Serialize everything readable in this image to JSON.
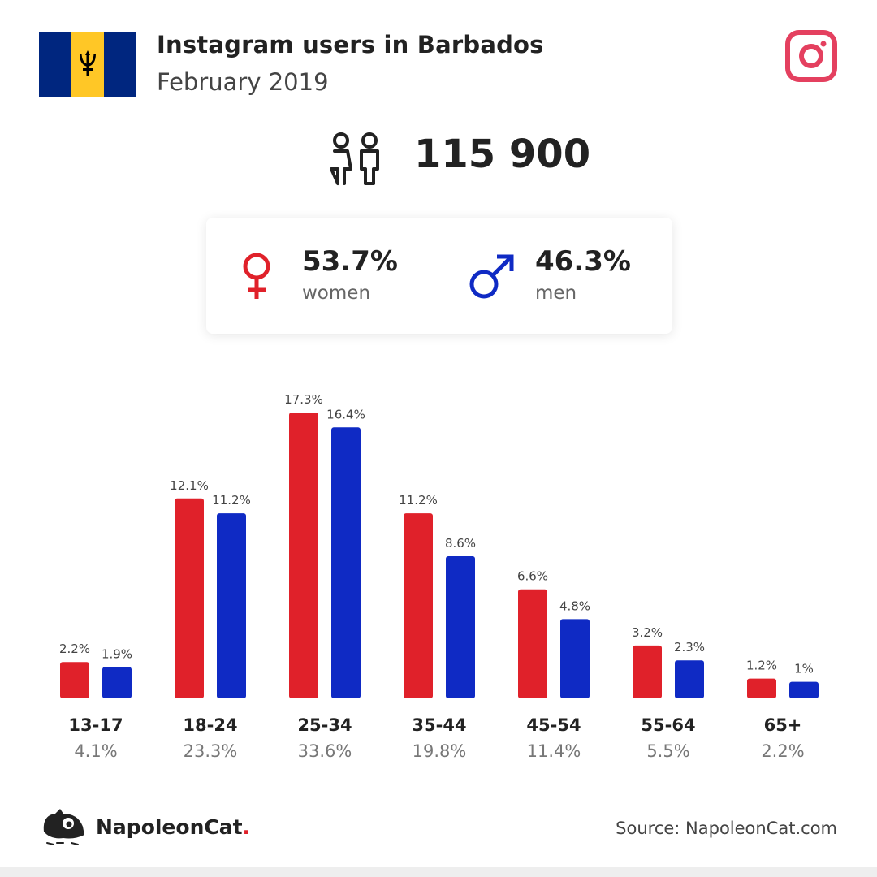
{
  "header": {
    "title": "Instagram users in Barbados",
    "subtitle": "February 2019"
  },
  "total": {
    "value": "115 900",
    "icon": "users-icon"
  },
  "gender": {
    "women": {
      "pct": "53.7%",
      "label": "women",
      "color": "#e0212a",
      "icon": "female-symbol-icon"
    },
    "men": {
      "pct": "46.3%",
      "label": "men",
      "color": "#0f2ac4",
      "icon": "male-symbol-icon"
    }
  },
  "colors": {
    "women": "#e0212a",
    "men": "#0f2ac4",
    "flag_blue": "#00267f",
    "flag_gold": "#ffc726",
    "instagram": "#e4405f"
  },
  "chart_data": {
    "type": "bar",
    "categories": [
      "13-17",
      "18-24",
      "25-34",
      "35-44",
      "45-54",
      "55-64",
      "65+"
    ],
    "category_totals": [
      "4.1%",
      "23.3%",
      "33.6%",
      "19.8%",
      "11.4%",
      "5.5%",
      "2.2%"
    ],
    "series": [
      {
        "name": "women",
        "values": [
          2.2,
          12.1,
          17.3,
          11.2,
          6.6,
          3.2,
          1.2
        ],
        "labels": [
          "2.2%",
          "12.1%",
          "17.3%",
          "11.2%",
          "6.6%",
          "3.2%",
          "1.2%"
        ]
      },
      {
        "name": "men",
        "values": [
          1.9,
          11.2,
          16.4,
          8.6,
          4.8,
          2.3,
          1.0
        ],
        "labels": [
          "1.9%",
          "11.2%",
          "16.4%",
          "8.6%",
          "4.8%",
          "2.3%",
          "1%"
        ]
      }
    ],
    "title": "",
    "xlabel": "",
    "ylabel": "",
    "ylim": [
      0,
      17.3
    ]
  },
  "footer": {
    "brand_name": "NapoleonCat",
    "brand_dot": ".",
    "source": "Source: NapoleonCat.com"
  }
}
